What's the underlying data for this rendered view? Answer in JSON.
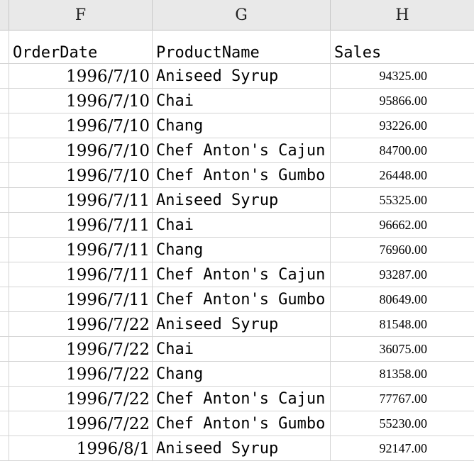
{
  "columns": [
    "F",
    "G",
    "H"
  ],
  "header": {
    "order_date": "OrderDate",
    "product_name": "ProductName",
    "sales": "Sales"
  },
  "rows": [
    {
      "date": "1996/7/10",
      "product": "Aniseed Syrup",
      "sales": "94325.00"
    },
    {
      "date": "1996/7/10",
      "product": "Chai",
      "sales": "95866.00"
    },
    {
      "date": "1996/7/10",
      "product": "Chang",
      "sales": "93226.00"
    },
    {
      "date": "1996/7/10",
      "product": "Chef Anton's Cajun",
      "sales": "84700.00"
    },
    {
      "date": "1996/7/10",
      "product": "Chef Anton's Gumbo",
      "sales": "26448.00"
    },
    {
      "date": "1996/7/11",
      "product": "Aniseed Syrup",
      "sales": "55325.00"
    },
    {
      "date": "1996/7/11",
      "product": "Chai",
      "sales": "96662.00"
    },
    {
      "date": "1996/7/11",
      "product": "Chang",
      "sales": "76960.00"
    },
    {
      "date": "1996/7/11",
      "product": "Chef Anton's Cajun",
      "sales": "93287.00"
    },
    {
      "date": "1996/7/11",
      "product": "Chef Anton's Gumbo",
      "sales": "80649.00"
    },
    {
      "date": "1996/7/22",
      "product": "Aniseed Syrup",
      "sales": "81548.00"
    },
    {
      "date": "1996/7/22",
      "product": "Chai",
      "sales": "36075.00"
    },
    {
      "date": "1996/7/22",
      "product": "Chang",
      "sales": "81358.00"
    },
    {
      "date": "1996/7/22",
      "product": "Chef Anton's Cajun",
      "sales": "77767.00"
    },
    {
      "date": "1996/7/22",
      "product": "Chef Anton's Gumbo",
      "sales": "55230.00"
    },
    {
      "date": "1996/8/1",
      "product": "Aniseed Syrup",
      "sales": "92147.00"
    }
  ]
}
